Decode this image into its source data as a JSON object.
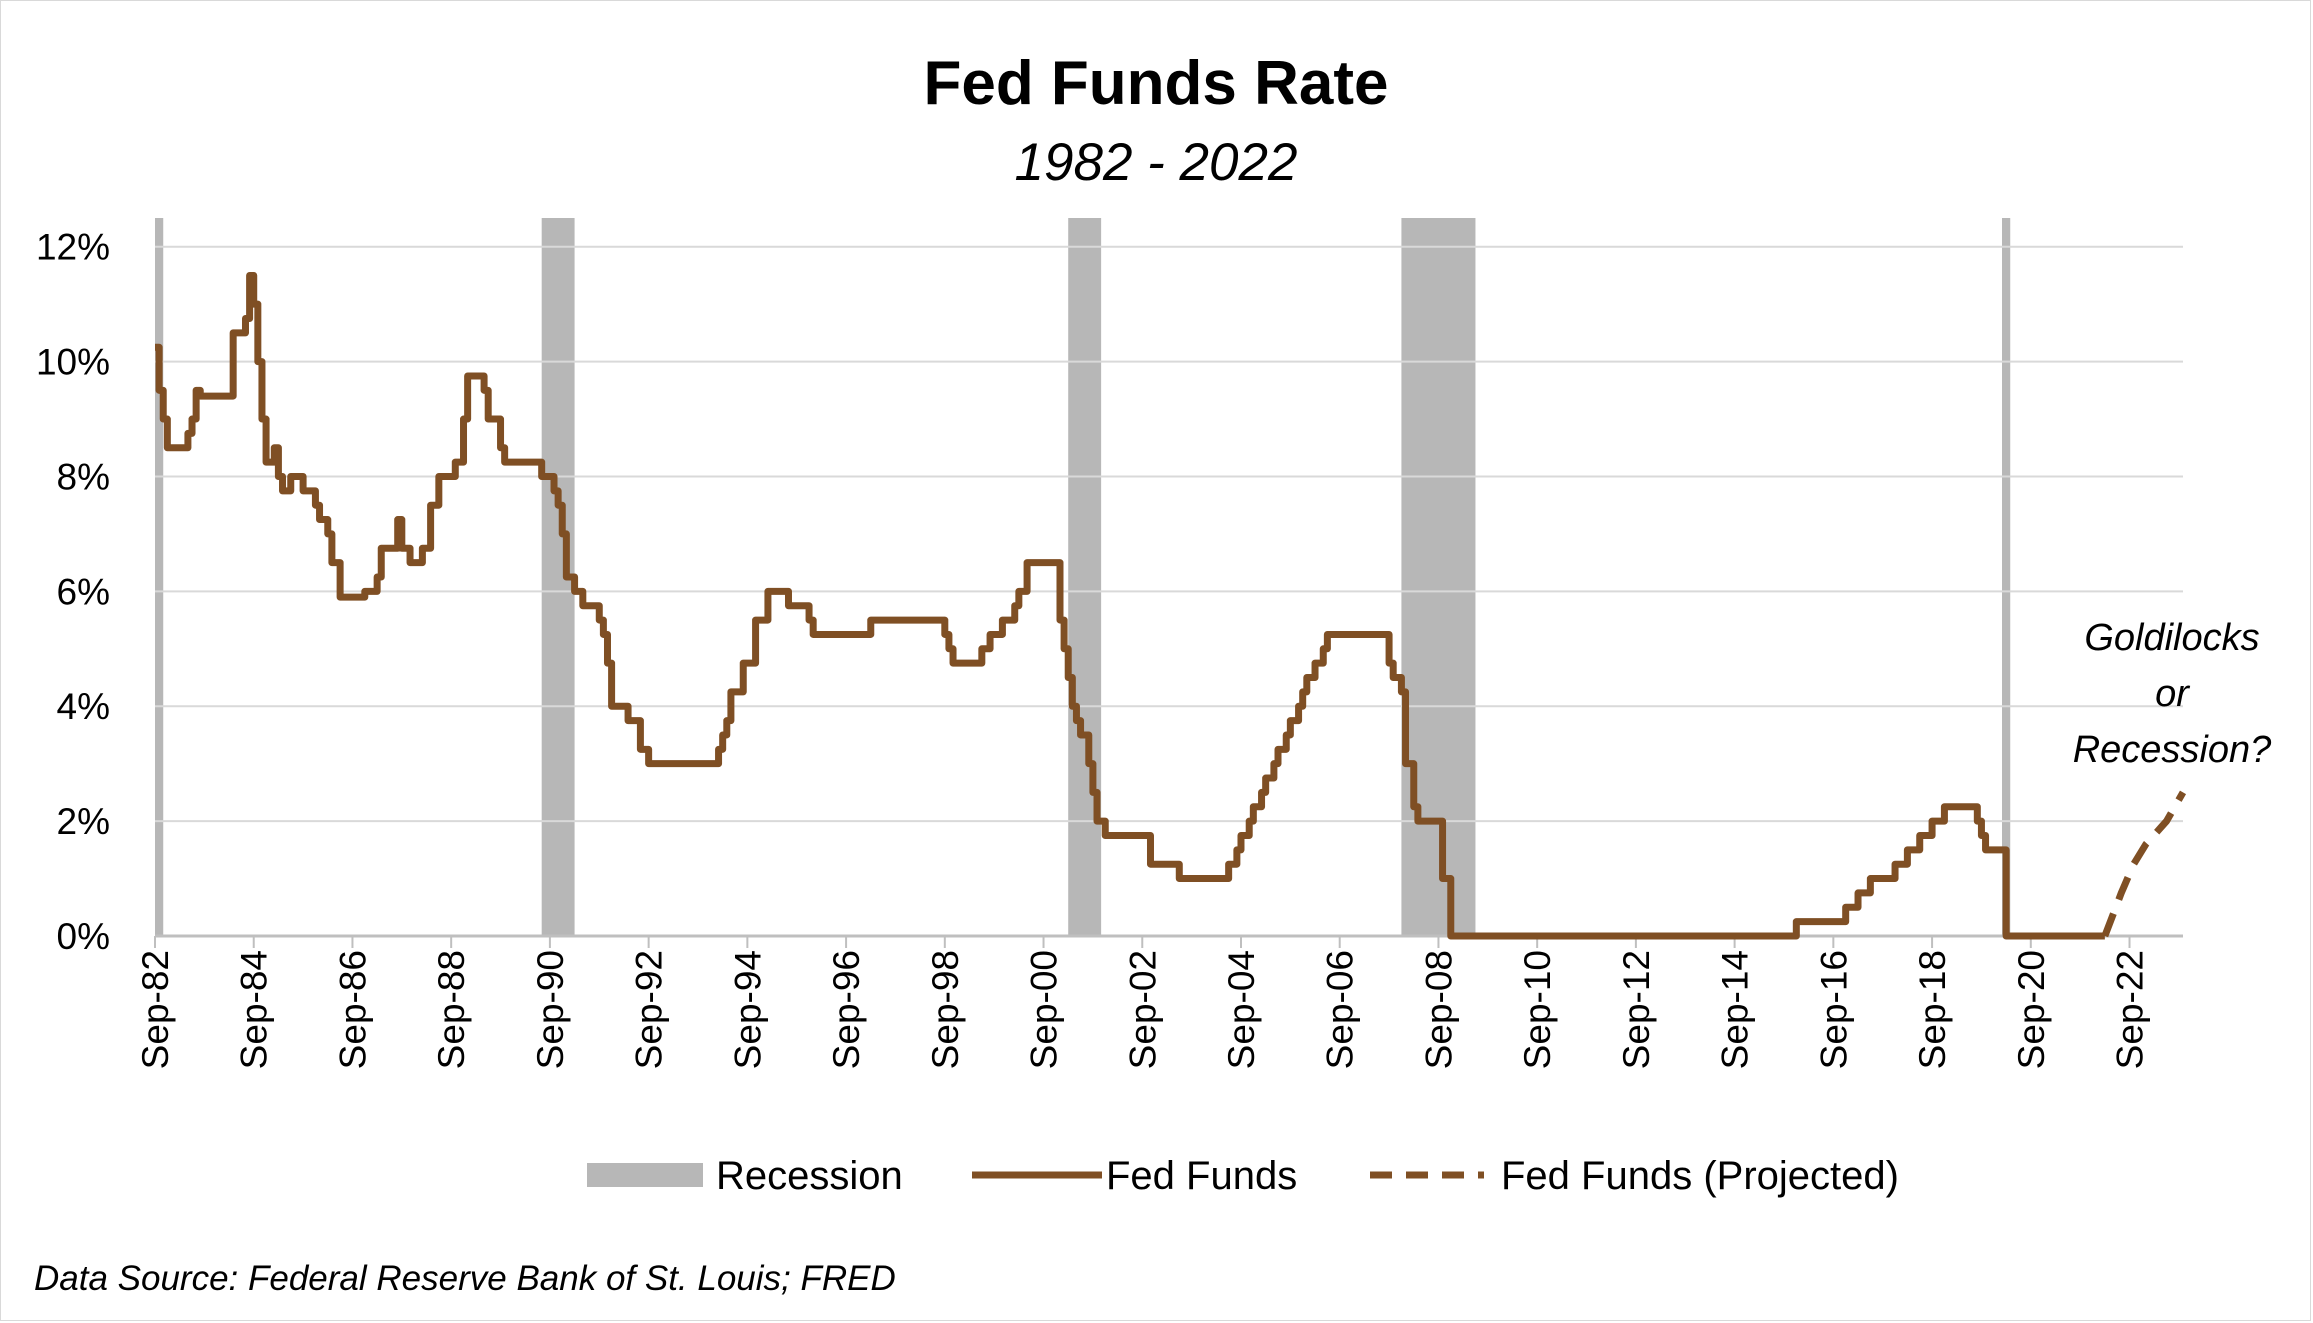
{
  "chart_data": {
    "type": "line",
    "title": "Fed Funds Rate",
    "subtitle": "1982 - 2022",
    "ylim": [
      0,
      12.5
    ],
    "xlim": [
      "1982-09",
      "2023-10"
    ],
    "y_ticks": [
      "0%",
      "2%",
      "4%",
      "6%",
      "8%",
      "10%",
      "12%"
    ],
    "y_tick_values": [
      0,
      2,
      4,
      6,
      8,
      10,
      12
    ],
    "x_ticks": [
      "Sep-82",
      "Sep-84",
      "Sep-86",
      "Sep-88",
      "Sep-90",
      "Sep-92",
      "Sep-94",
      "Sep-96",
      "Sep-98",
      "Sep-00",
      "Sep-02",
      "Sep-04",
      "Sep-06",
      "Sep-08",
      "Sep-10",
      "Sep-12",
      "Sep-14",
      "Sep-16",
      "Sep-18",
      "Sep-20",
      "Sep-22"
    ],
    "grid": "horizontal",
    "legend_position": "bottom",
    "recessions": [
      {
        "start": "1982-09",
        "end": "1982-11"
      },
      {
        "start": "1990-07",
        "end": "1991-03"
      },
      {
        "start": "2001-03",
        "end": "2001-11"
      },
      {
        "start": "2007-12",
        "end": "2009-06"
      },
      {
        "start": "2020-02",
        "end": "2020-04"
      }
    ],
    "series": [
      {
        "name": "Fed Funds",
        "style": "solid",
        "points": [
          [
            "1982-09",
            10.25
          ],
          [
            "1982-10",
            9.5
          ],
          [
            "1982-11",
            9.0
          ],
          [
            "1982-12",
            8.5
          ],
          [
            "1983-03",
            8.5
          ],
          [
            "1983-05",
            8.75
          ],
          [
            "1983-06",
            9.0
          ],
          [
            "1983-07",
            9.5
          ],
          [
            "1983-08",
            9.4
          ],
          [
            "1984-03",
            9.4
          ],
          [
            "1984-04",
            10.5
          ],
          [
            "1984-07",
            10.75
          ],
          [
            "1984-08",
            11.5
          ],
          [
            "1984-09",
            11.0
          ],
          [
            "1984-10",
            10.0
          ],
          [
            "1984-11",
            9.0
          ],
          [
            "1984-12",
            8.25
          ],
          [
            "1985-02",
            8.5
          ],
          [
            "1985-03",
            8.0
          ],
          [
            "1985-04",
            7.75
          ],
          [
            "1985-06",
            8.0
          ],
          [
            "1985-09",
            7.75
          ],
          [
            "1985-12",
            7.5
          ],
          [
            "1986-01",
            7.25
          ],
          [
            "1986-03",
            7.0
          ],
          [
            "1986-04",
            6.5
          ],
          [
            "1986-06",
            5.9
          ],
          [
            "1986-12",
            6.0
          ],
          [
            "1987-03",
            6.25
          ],
          [
            "1987-04",
            6.75
          ],
          [
            "1987-08",
            7.25
          ],
          [
            "1987-09",
            6.75
          ],
          [
            "1987-11",
            6.5
          ],
          [
            "1988-02",
            6.75
          ],
          [
            "1988-04",
            7.5
          ],
          [
            "1988-06",
            8.0
          ],
          [
            "1988-10",
            8.25
          ],
          [
            "1988-12",
            9.0
          ],
          [
            "1989-01",
            9.75
          ],
          [
            "1989-03",
            9.75
          ],
          [
            "1989-05",
            9.5
          ],
          [
            "1989-06",
            9.0
          ],
          [
            "1989-09",
            8.5
          ],
          [
            "1989-10",
            8.25
          ],
          [
            "1990-07",
            8.0
          ],
          [
            "1990-10",
            7.75
          ],
          [
            "1990-11",
            7.5
          ],
          [
            "1990-12",
            7.0
          ],
          [
            "1991-01",
            6.25
          ],
          [
            "1991-03",
            6.0
          ],
          [
            "1991-05",
            5.75
          ],
          [
            "1991-09",
            5.5
          ],
          [
            "1991-10",
            5.25
          ],
          [
            "1991-11",
            4.75
          ],
          [
            "1991-12",
            4.0
          ],
          [
            "1992-04",
            3.75
          ],
          [
            "1992-07",
            3.25
          ],
          [
            "1992-09",
            3.0
          ],
          [
            "1994-02",
            3.25
          ],
          [
            "1994-03",
            3.5
          ],
          [
            "1994-04",
            3.75
          ],
          [
            "1994-05",
            4.25
          ],
          [
            "1994-08",
            4.75
          ],
          [
            "1994-11",
            5.5
          ],
          [
            "1995-02",
            6.0
          ],
          [
            "1995-07",
            5.75
          ],
          [
            "1995-12",
            5.5
          ],
          [
            "1996-01",
            5.25
          ],
          [
            "1997-03",
            5.5
          ],
          [
            "1998-09",
            5.25
          ],
          [
            "1998-10",
            5.0
          ],
          [
            "1998-11",
            4.75
          ],
          [
            "1999-06",
            5.0
          ],
          [
            "1999-08",
            5.25
          ],
          [
            "1999-11",
            5.5
          ],
          [
            "2000-02",
            5.75
          ],
          [
            "2000-03",
            6.0
          ],
          [
            "2000-05",
            6.5
          ],
          [
            "2001-01",
            5.5
          ],
          [
            "2001-02",
            5.0
          ],
          [
            "2001-03",
            4.5
          ],
          [
            "2001-04",
            4.0
          ],
          [
            "2001-05",
            3.75
          ],
          [
            "2001-06",
            3.5
          ],
          [
            "2001-08",
            3.0
          ],
          [
            "2001-09",
            2.5
          ],
          [
            "2001-10",
            2.0
          ],
          [
            "2001-12",
            1.75
          ],
          [
            "2002-11",
            1.25
          ],
          [
            "2003-06",
            1.0
          ],
          [
            "2004-06",
            1.25
          ],
          [
            "2004-08",
            1.5
          ],
          [
            "2004-09",
            1.75
          ],
          [
            "2004-11",
            2.0
          ],
          [
            "2004-12",
            2.25
          ],
          [
            "2005-02",
            2.5
          ],
          [
            "2005-03",
            2.75
          ],
          [
            "2005-05",
            3.0
          ],
          [
            "2005-06",
            3.25
          ],
          [
            "2005-08",
            3.5
          ],
          [
            "2005-09",
            3.75
          ],
          [
            "2005-11",
            4.0
          ],
          [
            "2005-12",
            4.25
          ],
          [
            "2006-01",
            4.5
          ],
          [
            "2006-03",
            4.75
          ],
          [
            "2006-05",
            5.0
          ],
          [
            "2006-06",
            5.25
          ],
          [
            "2007-09",
            4.75
          ],
          [
            "2007-10",
            4.5
          ],
          [
            "2007-12",
            4.25
          ],
          [
            "2008-01",
            3.0
          ],
          [
            "2008-03",
            2.25
          ],
          [
            "2008-04",
            2.0
          ],
          [
            "2008-10",
            1.0
          ],
          [
            "2008-12",
            0.0
          ],
          [
            "2015-12",
            0.25
          ],
          [
            "2016-12",
            0.5
          ],
          [
            "2017-03",
            0.75
          ],
          [
            "2017-06",
            1.0
          ],
          [
            "2017-12",
            1.25
          ],
          [
            "2018-03",
            1.5
          ],
          [
            "2018-06",
            1.75
          ],
          [
            "2018-09",
            2.0
          ],
          [
            "2018-12",
            2.25
          ],
          [
            "2019-08",
            2.0
          ],
          [
            "2019-09",
            1.75
          ],
          [
            "2019-10",
            1.5
          ],
          [
            "2020-03",
            0.0
          ],
          [
            "2022-03",
            0.0
          ]
        ]
      },
      {
        "name": "Fed Funds (Projected)",
        "style": "dashed",
        "points": [
          [
            "2022-03",
            0.0
          ],
          [
            "2022-07",
            0.75
          ],
          [
            "2022-10",
            1.25
          ],
          [
            "2023-01",
            1.6
          ],
          [
            "2023-06",
            2.0
          ],
          [
            "2023-10",
            2.5
          ]
        ]
      }
    ],
    "annotation": [
      "Goldilocks",
      "or",
      "Recession?"
    ]
  },
  "legend": {
    "recession": "Recession",
    "fed_funds": "Fed Funds",
    "projected": "Fed Funds (Projected)"
  },
  "source": "Data Source:  Federal Reserve Bank of St. Louis; FRED",
  "colors": {
    "line": "#7f4f24",
    "recession": "#b7b7b7",
    "grid": "#d9d9d9",
    "axis": "#bfbfbf"
  }
}
